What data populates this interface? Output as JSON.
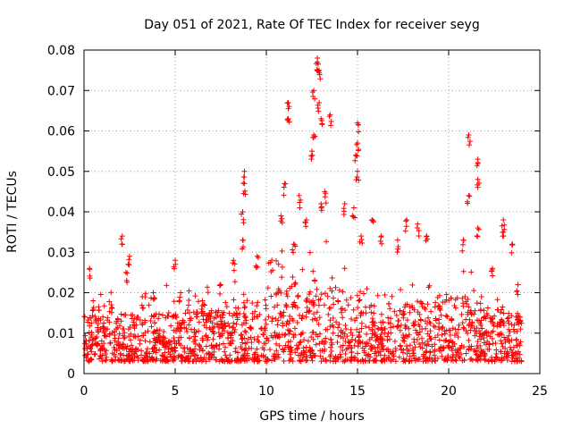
{
  "chart_data": {
    "type": "scatter",
    "title": "Day 051 of 2021, Rate Of TEC Index for receiver seyg",
    "xlabel": "GPS time / hours",
    "ylabel": "ROTI / TECUs",
    "xlim": [
      0,
      25
    ],
    "ylim": [
      0,
      0.08
    ],
    "x_ticks": [
      0,
      5,
      10,
      15,
      20,
      25
    ],
    "x_tick_labels": [
      "0",
      "5",
      "10",
      "15",
      "20",
      "25"
    ],
    "y_ticks": [
      0,
      0.01,
      0.02,
      0.03,
      0.04,
      0.05,
      0.06,
      0.07,
      0.08
    ],
    "y_tick_labels": [
      "0",
      "0.01",
      "0.02",
      "0.03",
      "0.04",
      "0.05",
      "0.06",
      "0.07",
      "0.08"
    ],
    "grid": true,
    "marker": "+",
    "color": "#ff0000",
    "series": [
      {
        "name": "ROTI",
        "x_range": [
          0,
          24
        ],
        "baseline_band": [
          0.003,
          0.015
        ],
        "highlights": [
          {
            "x": 0.3,
            "y": 0.026
          },
          {
            "x": 0.5,
            "y": 0.018
          },
          {
            "x": 1.5,
            "y": 0.017
          },
          {
            "x": 2.1,
            "y": 0.034
          },
          {
            "x": 2.3,
            "y": 0.025
          },
          {
            "x": 2.5,
            "y": 0.029
          },
          {
            "x": 3.2,
            "y": 0.019
          },
          {
            "x": 3.8,
            "y": 0.02
          },
          {
            "x": 5.0,
            "y": 0.028
          },
          {
            "x": 5.3,
            "y": 0.02
          },
          {
            "x": 6.5,
            "y": 0.018
          },
          {
            "x": 7.5,
            "y": 0.022
          },
          {
            "x": 8.2,
            "y": 0.028
          },
          {
            "x": 8.8,
            "y": 0.05
          },
          {
            "x": 8.8,
            "y": 0.047
          },
          {
            "x": 8.7,
            "y": 0.04
          },
          {
            "x": 8.7,
            "y": 0.033
          },
          {
            "x": 9.5,
            "y": 0.029
          },
          {
            "x": 10.3,
            "y": 0.028
          },
          {
            "x": 10.8,
            "y": 0.039
          },
          {
            "x": 11.0,
            "y": 0.047
          },
          {
            "x": 11.2,
            "y": 0.067
          },
          {
            "x": 11.2,
            "y": 0.063
          },
          {
            "x": 11.5,
            "y": 0.032
          },
          {
            "x": 11.8,
            "y": 0.044
          },
          {
            "x": 12.2,
            "y": 0.038
          },
          {
            "x": 12.5,
            "y": 0.055
          },
          {
            "x": 12.6,
            "y": 0.07
          },
          {
            "x": 12.6,
            "y": 0.059
          },
          {
            "x": 12.8,
            "y": 0.078
          },
          {
            "x": 12.8,
            "y": 0.077
          },
          {
            "x": 12.9,
            "y": 0.075
          },
          {
            "x": 12.9,
            "y": 0.067
          },
          {
            "x": 13.0,
            "y": 0.063
          },
          {
            "x": 13.0,
            "y": 0.042
          },
          {
            "x": 13.5,
            "y": 0.064
          },
          {
            "x": 13.2,
            "y": 0.045
          },
          {
            "x": 14.3,
            "y": 0.042
          },
          {
            "x": 14.8,
            "y": 0.041
          },
          {
            "x": 15.0,
            "y": 0.062
          },
          {
            "x": 15.0,
            "y": 0.057
          },
          {
            "x": 14.9,
            "y": 0.054
          },
          {
            "x": 15.0,
            "y": 0.05
          },
          {
            "x": 15.2,
            "y": 0.034
          },
          {
            "x": 15.8,
            "y": 0.038
          },
          {
            "x": 16.3,
            "y": 0.034
          },
          {
            "x": 17.2,
            "y": 0.033
          },
          {
            "x": 17.7,
            "y": 0.038
          },
          {
            "x": 18.3,
            "y": 0.037
          },
          {
            "x": 18.8,
            "y": 0.034
          },
          {
            "x": 20.8,
            "y": 0.033
          },
          {
            "x": 21.1,
            "y": 0.059
          },
          {
            "x": 21.1,
            "y": 0.044
          },
          {
            "x": 21.6,
            "y": 0.053
          },
          {
            "x": 21.6,
            "y": 0.048
          },
          {
            "x": 21.6,
            "y": 0.036
          },
          {
            "x": 22.4,
            "y": 0.026
          },
          {
            "x": 23.0,
            "y": 0.035
          },
          {
            "x": 23.0,
            "y": 0.038
          },
          {
            "x": 23.5,
            "y": 0.032
          },
          {
            "x": 23.8,
            "y": 0.022
          }
        ]
      }
    ]
  }
}
